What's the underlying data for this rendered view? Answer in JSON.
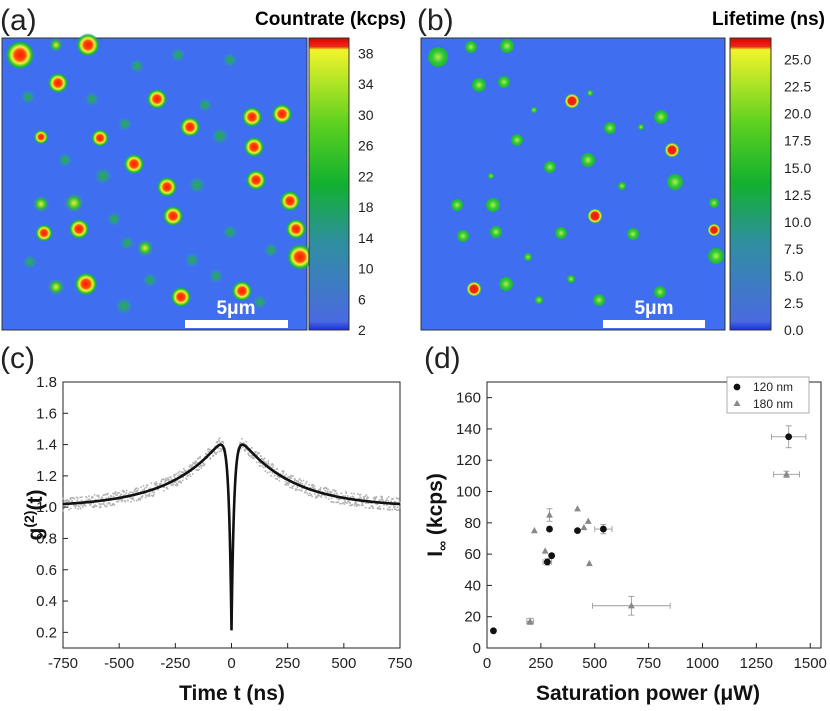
{
  "panels": {
    "a": {
      "label": "(a)",
      "title": "Countrate (kcps)",
      "scale_bar": "5μm",
      "colorbar_ticks": [
        "38",
        "34",
        "30",
        "26",
        "22",
        "18",
        "14",
        "10",
        "6",
        "2"
      ],
      "colorbar_range": [
        2,
        40
      ],
      "spots": [
        [
          0.5,
          16
        ],
        [
          1.3,
          27
        ],
        [
          7,
          29
        ],
        [
          4.5,
          26
        ],
        [
          3.5,
          8
        ],
        [
          4.5,
          13
        ],
        [
          2.5,
          13
        ],
        [
          3.3,
          21
        ],
        [
          4,
          19
        ],
        [
          6.5,
          23
        ],
        [
          5.7,
          12
        ],
        [
          6,
          14
        ],
        [
          6.5,
          29
        ],
        [
          5.3,
          26
        ],
        [
          3,
          9
        ],
        [
          2.5,
          6
        ],
        [
          2,
          21
        ],
        [
          2,
          23
        ],
        [
          1,
          23
        ],
        [
          2,
          14
        ],
        [
          1.8,
          10
        ],
        [
          0.8,
          28
        ],
        [
          1.5,
          9
        ],
        [
          1.3,
          11
        ],
        [
          0.3,
          8
        ],
        [
          0.7,
          29
        ],
        [
          8,
          12
        ],
        [
          9.3,
          9
        ],
        [
          0.5,
          14
        ],
        [
          3.7,
          10
        ],
        [
          4.8,
          11
        ],
        [
          8.8,
          7
        ]
      ],
      "extra_spots_note": ""
    },
    "b": {
      "label": "(b)",
      "title": "Lifetime (ns)",
      "scale_bar": "5μm",
      "colorbar_ticks": [
        "25.0",
        "22.5",
        "20.0",
        "17.5",
        "15.0",
        "12.5",
        "10.0",
        "7.5",
        "5.0",
        "2.5",
        "0.0"
      ],
      "colorbar_range": [
        0,
        27
      ]
    },
    "c": {
      "label": "(c)",
      "xlabel": "Time t (ns)",
      "ylabel": "g⁽²⁾(t)"
    },
    "d": {
      "label": "(d)",
      "xlabel": "Saturation power (μW)",
      "ylabel": "I∞ (kcps)"
    }
  },
  "chart_data": [
    {
      "type": "line",
      "panel": "c",
      "xlabel": "Time t (ns)",
      "ylabel": "g(2)(t)",
      "xlim": [
        -750,
        750
      ],
      "ylim": [
        0.1,
        1.8
      ],
      "xticks": [
        "-750",
        "-500",
        "-250",
        "0",
        "250",
        "500",
        "750"
      ],
      "yticks": [
        "0.2",
        "0.4",
        "0.6",
        "0.8",
        "1.0",
        "1.2",
        "1.4",
        "1.6",
        "1.8"
      ],
      "series": [
        {
          "x": [
            -750,
            -600,
            -500,
            -400,
            -300,
            -250,
            -200,
            -150,
            -100,
            -75,
            -50,
            -40,
            -30,
            -20,
            -15,
            -10,
            -5,
            0,
            5,
            10,
            15,
            20,
            30,
            40,
            50,
            75,
            100,
            150,
            200,
            250,
            300,
            400,
            500,
            600,
            750
          ],
          "y": [
            1.04,
            1.06,
            1.08,
            1.12,
            1.18,
            1.22,
            1.27,
            1.33,
            1.4,
            1.44,
            1.47,
            1.48,
            1.45,
            1.32,
            1.14,
            0.9,
            0.55,
            0.21,
            0.55,
            0.9,
            1.14,
            1.32,
            1.45,
            1.48,
            1.47,
            1.44,
            1.4,
            1.33,
            1.27,
            1.22,
            1.18,
            1.12,
            1.08,
            1.06,
            1.04
          ]
        }
      ]
    },
    {
      "type": "scatter",
      "panel": "d",
      "xlabel": "Saturation power (μW)",
      "ylabel": "I∞ (kcps)",
      "xlim": [
        0,
        1550
      ],
      "ylim": [
        0,
        170
      ],
      "xticks": [
        "0",
        "250",
        "500",
        "750",
        "1000",
        "1250",
        "1500"
      ],
      "yticks": [
        "0",
        "20",
        "40",
        "60",
        "80",
        "100",
        "120",
        "140",
        "160"
      ],
      "legend_position": "top-right",
      "series": [
        {
          "name": "120 nm",
          "marker": "circle",
          "color": "#111111",
          "points": [
            {
              "x": 30,
              "y": 11,
              "xerr": 0,
              "yerr": 0
            },
            {
              "x": 280,
              "y": 55,
              "xerr": 20,
              "yerr": 2
            },
            {
              "x": 290,
              "y": 76,
              "xerr": 0,
              "yerr": 0
            },
            {
              "x": 300,
              "y": 59,
              "xerr": 0,
              "yerr": 0
            },
            {
              "x": 420,
              "y": 75,
              "xerr": 0,
              "yerr": 0
            },
            {
              "x": 540,
              "y": 76,
              "xerr": 40,
              "yerr": 3
            },
            {
              "x": 1400,
              "y": 135,
              "xerr": 80,
              "yerr": 7
            }
          ]
        },
        {
          "name": "180 nm",
          "marker": "triangle",
          "color": "#888888",
          "points": [
            {
              "x": 200,
              "y": 17,
              "xerr": 15,
              "yerr": 2
            },
            {
              "x": 220,
              "y": 75,
              "xerr": 0,
              "yerr": 0
            },
            {
              "x": 270,
              "y": 62,
              "xerr": 0,
              "yerr": 0
            },
            {
              "x": 290,
              "y": 85,
              "xerr": 0,
              "yerr": 4
            },
            {
              "x": 420,
              "y": 89,
              "xerr": 0,
              "yerr": 0
            },
            {
              "x": 450,
              "y": 77,
              "xerr": 0,
              "yerr": 0
            },
            {
              "x": 470,
              "y": 81,
              "xerr": 0,
              "yerr": 0
            },
            {
              "x": 475,
              "y": 54,
              "xerr": 0,
              "yerr": 0
            },
            {
              "x": 670,
              "y": 27,
              "xerr": 180,
              "yerr": 6
            },
            {
              "x": 1390,
              "y": 111,
              "xerr": 60,
              "yerr": 2
            }
          ]
        }
      ]
    }
  ]
}
